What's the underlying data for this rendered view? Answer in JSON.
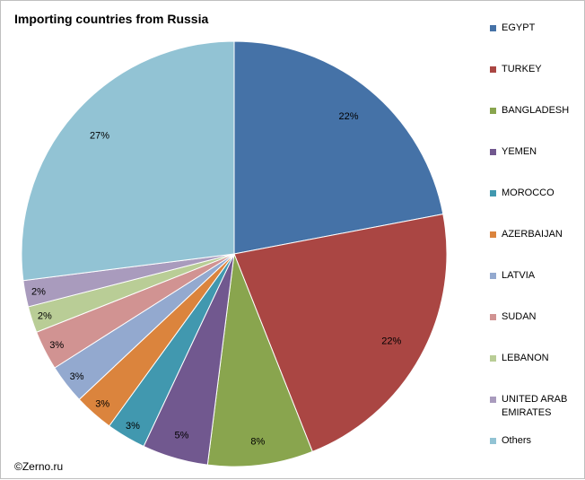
{
  "chart_data": {
    "type": "pie",
    "title": "Importing countries from Russia",
    "slices": [
      {
        "label": "EGYPT",
        "value": 22,
        "value_label": "22%",
        "color": "#4572a7"
      },
      {
        "label": "TURKEY",
        "value": 22,
        "value_label": "22%",
        "color": "#aa4643"
      },
      {
        "label": "BANGLADESH",
        "value": 8,
        "value_label": "8%",
        "color": "#89a54e"
      },
      {
        "label": "YEMEN",
        "value": 5,
        "value_label": "5%",
        "color": "#71588f"
      },
      {
        "label": "MOROCCO",
        "value": 3,
        "value_label": "3%",
        "color": "#4198af"
      },
      {
        "label": "AZERBAIJAN",
        "value": 3,
        "value_label": "3%",
        "color": "#db843d"
      },
      {
        "label": "LATVIA",
        "value": 3,
        "value_label": "3%",
        "color": "#93a9cf"
      },
      {
        "label": "SUDAN",
        "value": 3,
        "value_label": "3%",
        "color": "#d19392"
      },
      {
        "label": "LEBANON",
        "value": 2,
        "value_label": "2%",
        "color": "#b9cd96"
      },
      {
        "label": "UNITED ARAB EMIRATES",
        "value": 2,
        "value_label": "2%",
        "color": "#a99bbd"
      },
      {
        "label": "Others",
        "value": 27,
        "value_label": "27%",
        "color": "#92c3d4"
      }
    ],
    "legend_position": "right",
    "start_angle": "top, clockwise"
  },
  "credit": "©Zerno.ru"
}
